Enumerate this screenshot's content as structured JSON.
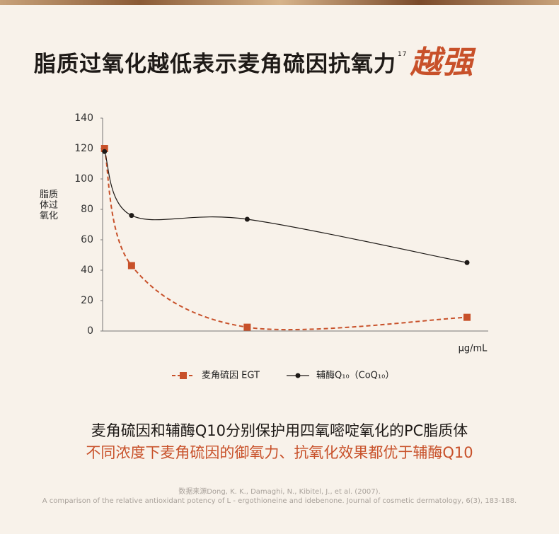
{
  "header": {
    "title": "脂质过氧化越低表示麦角硫因抗氧力",
    "superscript": "17",
    "emphasis": "越强"
  },
  "chart_data": {
    "type": "line",
    "ylabel": "脂质体过氧化",
    "xlabel": "μg/mL",
    "x": [
      0.5,
      7.5,
      37.5,
      94.5
    ],
    "xlim": [
      0,
      100
    ],
    "series": [
      {
        "name": "麦角硫因 EGT",
        "color": "#c8512a",
        "values": [
          120,
          43,
          2.5,
          9
        ]
      },
      {
        "name": "辅酶Q₁₀（CoQ₁₀）",
        "color": "#1e1a17",
        "values": [
          118,
          76,
          73.5,
          45
        ]
      }
    ],
    "ylim": [
      0,
      140
    ],
    "yticks": [
      0,
      20,
      40,
      60,
      80,
      100,
      120,
      140
    ]
  },
  "caption": {
    "line1": "麦角硫因和辅酶Q10分别保护用四氧嘧啶氧化的PC脂质体",
    "line2": "不同浓度下麦角硫因的御氧力、抗氧化效果都优于辅酶Q10"
  },
  "source": {
    "line1": "数据来源Dong, K. K., Damaghi, N., Kibitel, J., et al. (2007).",
    "line2": "A comparison of the relative antioxidant potency of L - ergothioneine and idebenone. Journal of cosmetic dermatology, 6(3), 183-188."
  }
}
